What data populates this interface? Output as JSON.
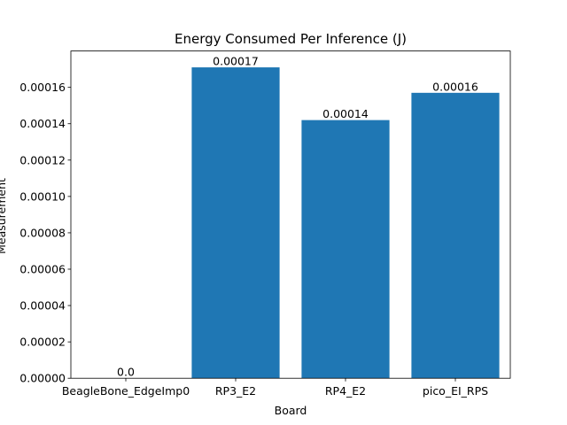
{
  "chart_data": {
    "type": "bar",
    "title": "Energy Consumed Per Inference (J)",
    "xlabel": "Board",
    "ylabel": "Measurement",
    "categories": [
      "BeagleBone_EdgeImp0",
      "RP3_E2",
      "RP4_E2",
      "pico_EI_RPS"
    ],
    "values": [
      0.0,
      0.000171,
      0.000142,
      0.000157
    ],
    "data_labels": [
      "0.0",
      "0.00017",
      "0.00014",
      "0.00016"
    ],
    "ylim": [
      0,
      0.00018
    ],
    "yticks": [
      0,
      2e-05,
      4e-05,
      6e-05,
      8e-05,
      0.0001,
      0.00012,
      0.00014,
      0.00016
    ],
    "ytick_labels": [
      "0.00000",
      "0.00002",
      "0.00004",
      "0.00006",
      "0.00008",
      "0.00010",
      "0.00012",
      "0.00014",
      "0.00016"
    ],
    "bar_color": "#1f77b4",
    "grid": false,
    "legend": "none"
  }
}
